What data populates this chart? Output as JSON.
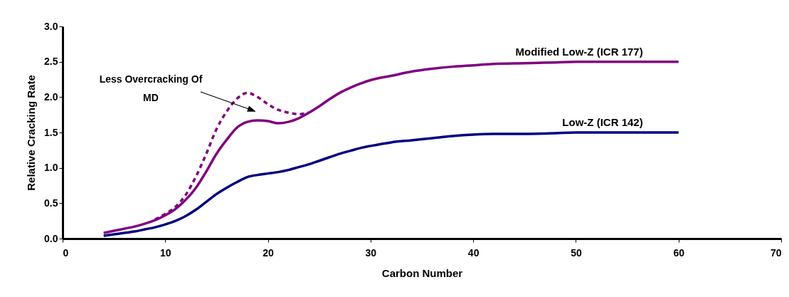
{
  "chart_data": {
    "type": "line",
    "xlabel": "Carbon Number",
    "ylabel": "Relative Cracking Rate",
    "xlim": [
      0,
      70
    ],
    "xticks": [
      0,
      10,
      20,
      30,
      40,
      50,
      60,
      70
    ],
    "ylim": [
      0,
      3
    ],
    "yticks": [
      {
        "value": 0,
        "label": "0.0"
      },
      {
        "value": 0.5,
        "label": "0.5"
      },
      {
        "value": 1,
        "label": "1.0"
      },
      {
        "value": 1.5,
        "label": "1.5"
      },
      {
        "value": 2,
        "label": "2.0"
      },
      {
        "value": 2.5,
        "label": "2.5"
      },
      {
        "value": 3,
        "label": "3.0"
      }
    ],
    "grid": false,
    "series": [
      {
        "name": "Modified Low-Z (ICR 177)",
        "color": "#800080",
        "line_style": "solid",
        "x": [
          4,
          5,
          6,
          7,
          8,
          9,
          10,
          11,
          12,
          13,
          14,
          15,
          16,
          17,
          18,
          19,
          20,
          21,
          22,
          23,
          24,
          25,
          26,
          27,
          28,
          29,
          30,
          32,
          34,
          36,
          38,
          40,
          42,
          45,
          48,
          50,
          55,
          60
        ],
        "values": [
          0.08,
          0.11,
          0.14,
          0.17,
          0.21,
          0.26,
          0.33,
          0.42,
          0.55,
          0.72,
          0.95,
          1.2,
          1.4,
          1.57,
          1.65,
          1.67,
          1.66,
          1.63,
          1.65,
          1.7,
          1.78,
          1.87,
          1.97,
          2.06,
          2.13,
          2.19,
          2.24,
          2.3,
          2.36,
          2.4,
          2.43,
          2.45,
          2.47,
          2.48,
          2.49,
          2.5,
          2.5,
          2.5
        ]
      },
      {
        "color": "#800080",
        "line_style": "dashed",
        "x": [
          9,
          10,
          11,
          12,
          13,
          14,
          15,
          16,
          17,
          18,
          19,
          20,
          21,
          22,
          23,
          24
        ],
        "values": [
          0.27,
          0.35,
          0.45,
          0.62,
          0.88,
          1.2,
          1.55,
          1.8,
          1.98,
          2.06,
          2.0,
          1.9,
          1.82,
          1.78,
          1.76,
          1.78
        ]
      },
      {
        "name": "Low-Z (ICR 142)",
        "color": "#000080",
        "line_style": "solid",
        "x": [
          4,
          5,
          6,
          7,
          8,
          9,
          10,
          11,
          12,
          13,
          14,
          15,
          16,
          17,
          18,
          19,
          20,
          21,
          22,
          23,
          24,
          25,
          26,
          27,
          28,
          29,
          30,
          32,
          34,
          36,
          38,
          40,
          42,
          45,
          48,
          50,
          55,
          60
        ],
        "values": [
          0.04,
          0.06,
          0.08,
          0.1,
          0.13,
          0.16,
          0.2,
          0.25,
          0.32,
          0.41,
          0.52,
          0.63,
          0.72,
          0.8,
          0.87,
          0.9,
          0.92,
          0.94,
          0.97,
          1.01,
          1.05,
          1.1,
          1.15,
          1.2,
          1.24,
          1.28,
          1.31,
          1.36,
          1.39,
          1.42,
          1.45,
          1.47,
          1.48,
          1.48,
          1.49,
          1.5,
          1.5,
          1.5
        ]
      }
    ],
    "annotations": [
      "Less Overcracking Of MD"
    ]
  }
}
